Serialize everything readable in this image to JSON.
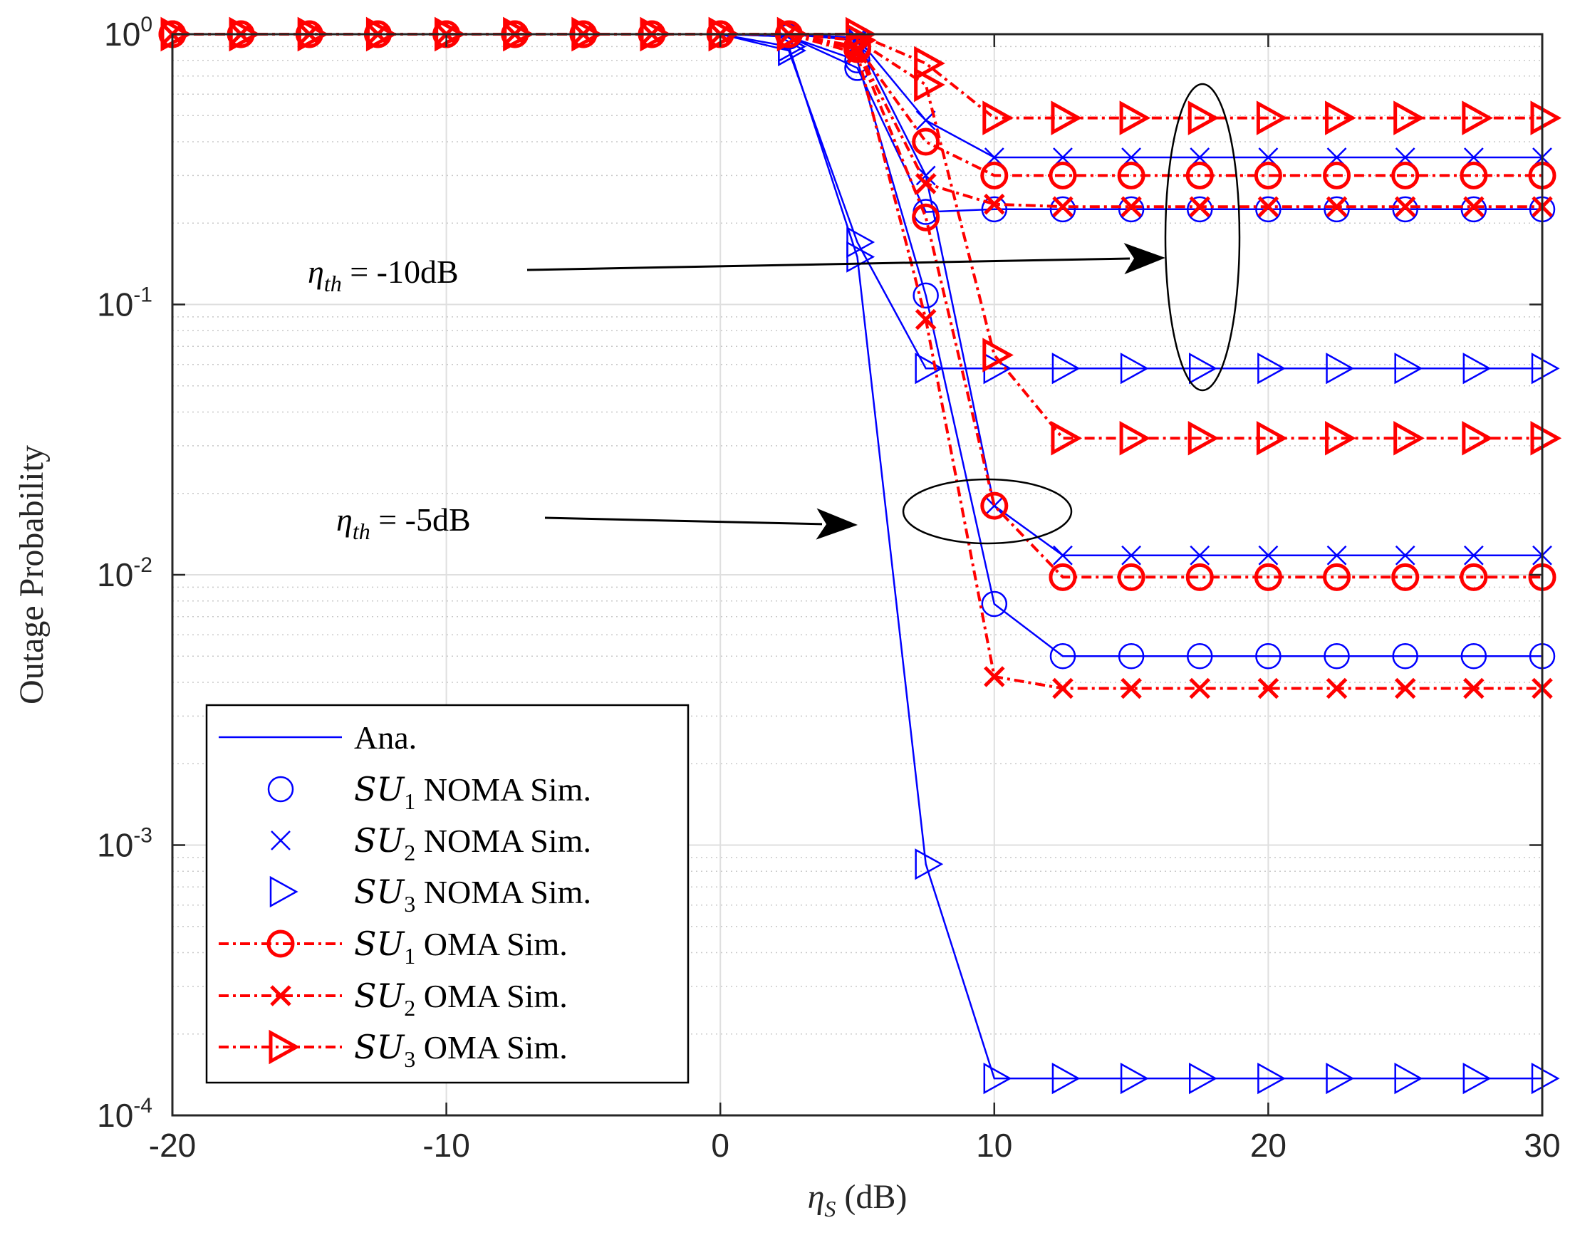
{
  "chart_data": {
    "type": "line",
    "yscale": "log",
    "xlabel": "ηS (dB)",
    "xlabel_parts": {
      "symbol": "η",
      "subscript": "S",
      "unit": " (dB)"
    },
    "ylabel": "Outage Probability",
    "xlim": [
      -20,
      30
    ],
    "ylim": [
      0.0001,
      1
    ],
    "xticks": [
      -20,
      -10,
      0,
      10,
      20,
      30
    ],
    "xtick_labels": [
      "-20",
      "-10",
      "0",
      "10",
      "20",
      "30"
    ],
    "ytick_labels": [
      {
        "value": 1,
        "base": "10",
        "exp": "0"
      },
      {
        "value": 0.1,
        "base": "10",
        "exp": "-1"
      },
      {
        "value": 0.01,
        "base": "10",
        "exp": "-2"
      },
      {
        "value": 0.001,
        "base": "10",
        "exp": "-3"
      },
      {
        "value": 0.0001,
        "base": "10",
        "exp": "-4"
      }
    ],
    "grid": true,
    "legend_position": "bottom-left",
    "x": [
      -20,
      -17.5,
      -15,
      -12.5,
      -10,
      -7.5,
      -5,
      -2.5,
      0,
      2.5,
      5,
      7.5,
      10,
      12.5,
      15,
      17.5,
      20,
      22.5,
      25,
      27.5,
      30
    ],
    "legend": [
      {
        "key": "ana",
        "label": "Ana."
      },
      {
        "key": "noma_su1",
        "prefix": "SU",
        "sub": "1",
        "suffix": " NOMA Sim."
      },
      {
        "key": "noma_su2",
        "prefix": "SU",
        "sub": "2",
        "suffix": " NOMA Sim."
      },
      {
        "key": "noma_su3",
        "prefix": "SU",
        "sub": "3",
        "suffix": " NOMA Sim."
      },
      {
        "key": "oma_su1",
        "prefix": "SU",
        "sub": "1",
        "suffix": " OMA Sim."
      },
      {
        "key": "oma_su2",
        "prefix": "SU",
        "sub": "2",
        "suffix": " OMA Sim."
      },
      {
        "key": "oma_su3",
        "prefix": "SU",
        "sub": "3",
        "suffix": " OMA Sim."
      }
    ],
    "series": [
      {
        "name": "SU1 NOMA Sim. (ηth = -10dB)",
        "scheme": "NOMA",
        "marker": "circle",
        "color": "#0000ff",
        "threshold": "-10dB",
        "values": [
          1,
          1,
          1,
          1,
          1,
          1,
          1,
          1,
          1,
          0.98,
          0.75,
          0.22,
          0.225,
          0.225,
          0.225,
          0.225,
          0.225,
          0.225,
          0.225,
          0.225,
          0.225
        ]
      },
      {
        "name": "SU2 NOMA Sim. (ηth = -10dB)",
        "scheme": "NOMA",
        "marker": "x",
        "color": "#0000ff",
        "threshold": "-10dB",
        "values": [
          1,
          1,
          1,
          1,
          1,
          1,
          1,
          1,
          1,
          1,
          0.97,
          0.48,
          0.35,
          0.35,
          0.35,
          0.35,
          0.35,
          0.35,
          0.35,
          0.35,
          0.35
        ]
      },
      {
        "name": "SU3 NOMA Sim. (ηth = -10dB)",
        "scheme": "NOMA",
        "marker": "triangle",
        "color": "#0000ff",
        "threshold": "-10dB",
        "values": [
          1,
          1,
          1,
          1,
          1,
          1,
          1,
          1,
          1,
          0.87,
          0.17,
          0.058,
          0.058,
          0.058,
          0.058,
          0.058,
          0.058,
          0.058,
          0.058,
          0.058,
          0.058
        ]
      },
      {
        "name": "SU1 NOMA Sim. (ηth = -5dB)",
        "scheme": "NOMA",
        "marker": "circle",
        "color": "#0000ff",
        "threshold": "-5dB",
        "values": [
          1,
          1,
          1,
          1,
          1,
          1,
          1,
          1,
          1,
          0.98,
          0.8,
          0.108,
          0.0078,
          0.005,
          0.005,
          0.005,
          0.005,
          0.005,
          0.005,
          0.005,
          0.005
        ]
      },
      {
        "name": "SU2 NOMA Sim. (ηth = -5dB)",
        "scheme": "NOMA",
        "marker": "x",
        "color": "#0000ff",
        "threshold": "-5dB",
        "values": [
          1,
          1,
          1,
          1,
          1,
          1,
          1,
          1,
          1,
          1,
          0.95,
          0.3,
          0.018,
          0.0118,
          0.0118,
          0.0118,
          0.0118,
          0.0118,
          0.0118,
          0.0118,
          0.0118
        ]
      },
      {
        "name": "SU3 NOMA Sim. (ηth = -5dB)",
        "scheme": "NOMA",
        "marker": "triangle",
        "color": "#0000ff",
        "threshold": "-5dB",
        "values": [
          1,
          1,
          1,
          1,
          1,
          1,
          1,
          1,
          1,
          0.9,
          0.15,
          0.00085,
          0.000137,
          0.000137,
          0.000137,
          0.000137,
          0.000137,
          0.000137,
          0.000137,
          0.000137,
          0.000137
        ]
      },
      {
        "name": "SU1 OMA Sim. (ηth = -10dB)",
        "scheme": "OMA",
        "marker": "circle",
        "color": "#ff0000",
        "threshold": "-10dB",
        "values": [
          1,
          1,
          1,
          1,
          1,
          1,
          1,
          1,
          1,
          1,
          0.9,
          0.4,
          0.3,
          0.3,
          0.3,
          0.3,
          0.3,
          0.3,
          0.3,
          0.3,
          0.3
        ]
      },
      {
        "name": "SU2 OMA Sim. (ηth = -10dB)",
        "scheme": "OMA",
        "marker": "x",
        "color": "#ff0000",
        "threshold": "-10dB",
        "values": [
          1,
          1,
          1,
          1,
          1,
          1,
          1,
          1,
          1,
          1,
          0.88,
          0.28,
          0.235,
          0.23,
          0.23,
          0.23,
          0.23,
          0.23,
          0.23,
          0.23,
          0.23
        ]
      },
      {
        "name": "SU3 OMA Sim. (ηth = -10dB)",
        "scheme": "OMA",
        "marker": "triangle",
        "color": "#ff0000",
        "threshold": "-10dB",
        "values": [
          1,
          1,
          1,
          1,
          1,
          1,
          1,
          1,
          1,
          1,
          1,
          0.78,
          0.49,
          0.49,
          0.49,
          0.49,
          0.49,
          0.49,
          0.49,
          0.49,
          0.49
        ]
      },
      {
        "name": "SU1 OMA Sim. (ηth = -5dB)",
        "scheme": "OMA",
        "marker": "circle",
        "color": "#ff0000",
        "threshold": "-5dB",
        "values": [
          1,
          1,
          1,
          1,
          1,
          1,
          1,
          1,
          1,
          1,
          0.88,
          0.21,
          0.018,
          0.0098,
          0.0098,
          0.0098,
          0.0098,
          0.0098,
          0.0098,
          0.0098,
          0.0098
        ]
      },
      {
        "name": "SU2 OMA Sim. (ηth = -5dB)",
        "scheme": "OMA",
        "marker": "x",
        "color": "#ff0000",
        "threshold": "-5dB",
        "values": [
          1,
          1,
          1,
          1,
          1,
          1,
          1,
          1,
          1,
          1,
          0.85,
          0.088,
          0.0042,
          0.0038,
          0.0038,
          0.0038,
          0.0038,
          0.0038,
          0.0038,
          0.0038,
          0.0038
        ]
      },
      {
        "name": "SU3 OMA Sim. (ηth = -5dB)",
        "scheme": "OMA",
        "marker": "triangle",
        "color": "#ff0000",
        "threshold": "-5dB",
        "values": [
          1,
          1,
          1,
          1,
          1,
          1,
          1,
          1,
          1,
          1,
          0.95,
          0.65,
          0.065,
          0.032,
          0.032,
          0.032,
          0.032,
          0.032,
          0.032,
          0.032,
          0.032
        ]
      }
    ],
    "annotations": [
      {
        "key": "th10",
        "symbol": "η",
        "sub": "th",
        "text": " = -10dB",
        "points_to": {
          "x": 17.5,
          "y": 0.17
        }
      },
      {
        "key": "th5",
        "symbol": "η",
        "sub": "th",
        "text": " = -5dB",
        "points_to": {
          "x": 10,
          "y": 0.016
        }
      }
    ],
    "colors": {
      "noma": "#0000ff",
      "oma": "#ff0000",
      "axis": "#262626",
      "grid": "#dfdfdf"
    }
  }
}
